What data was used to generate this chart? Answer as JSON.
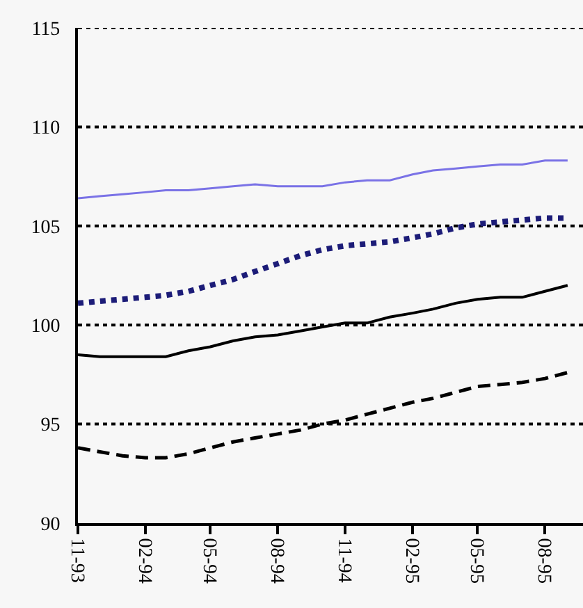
{
  "chart_data": {
    "type": "line",
    "x": [
      "1993-11",
      "1993-12",
      "1994-01",
      "1994-02",
      "1994-03",
      "1994-04",
      "1994-05",
      "1994-06",
      "1994-07",
      "1994-08",
      "1994-09",
      "1994-10",
      "1994-11",
      "1994-12",
      "1995-01",
      "1995-02",
      "1995-03",
      "1995-04",
      "1995-05",
      "1995-06",
      "1995-07",
      "1995-08",
      "1995-09"
    ],
    "series": [
      {
        "color": "#7a72e6",
        "line_style": "solid",
        "values": [
          106.4,
          106.5,
          106.6,
          106.7,
          106.8,
          106.8,
          106.9,
          107.0,
          107.1,
          107.0,
          107.0,
          107.0,
          107.2,
          107.3,
          107.3,
          107.6,
          107.8,
          107.9,
          108.0,
          108.1,
          108.1,
          108.3,
          108.3
        ]
      },
      {
        "color": "#1c1c78",
        "line_style": "dotted",
        "values": [
          101.1,
          101.2,
          101.3,
          101.4,
          101.5,
          101.7,
          102.0,
          102.3,
          102.7,
          103.1,
          103.5,
          103.8,
          104.0,
          104.1,
          104.2,
          104.4,
          104.6,
          104.9,
          105.1,
          105.2,
          105.3,
          105.4,
          105.4
        ]
      },
      {
        "color": "#000000",
        "line_style": "solid",
        "values": [
          98.5,
          98.4,
          98.4,
          98.4,
          98.4,
          98.7,
          98.9,
          99.2,
          99.4,
          99.5,
          99.7,
          99.9,
          100.1,
          100.1,
          100.4,
          100.6,
          100.8,
          101.1,
          101.3,
          101.4,
          101.4,
          101.7,
          102.0
        ]
      },
      {
        "color": "#000000",
        "line_style": "dashed",
        "values": [
          93.8,
          93.6,
          93.4,
          93.3,
          93.3,
          93.5,
          93.8,
          94.1,
          94.3,
          94.5,
          94.7,
          95.0,
          95.2,
          95.5,
          95.8,
          96.1,
          96.3,
          96.6,
          96.9,
          97.0,
          97.1,
          97.3,
          97.6
        ]
      }
    ],
    "xlim": [
      "1993-11",
      "1995-09-22"
    ],
    "xticks": [
      {
        "value": "1993-11",
        "label": "11-93"
      },
      {
        "value": "1994-02",
        "label": "02-94"
      },
      {
        "value": "1994-05",
        "label": "05-94"
      },
      {
        "value": "1994-08",
        "label": "08-94"
      },
      {
        "value": "1994-11",
        "label": "11-94"
      },
      {
        "value": "1995-02",
        "label": "02-95"
      },
      {
        "value": "1995-05",
        "label": "05-95"
      },
      {
        "value": "1995-08",
        "label": "08-95"
      }
    ],
    "ylim": [
      90,
      115
    ],
    "yticks": [
      90,
      95,
      100,
      105,
      110,
      115
    ],
    "grid": "y"
  }
}
